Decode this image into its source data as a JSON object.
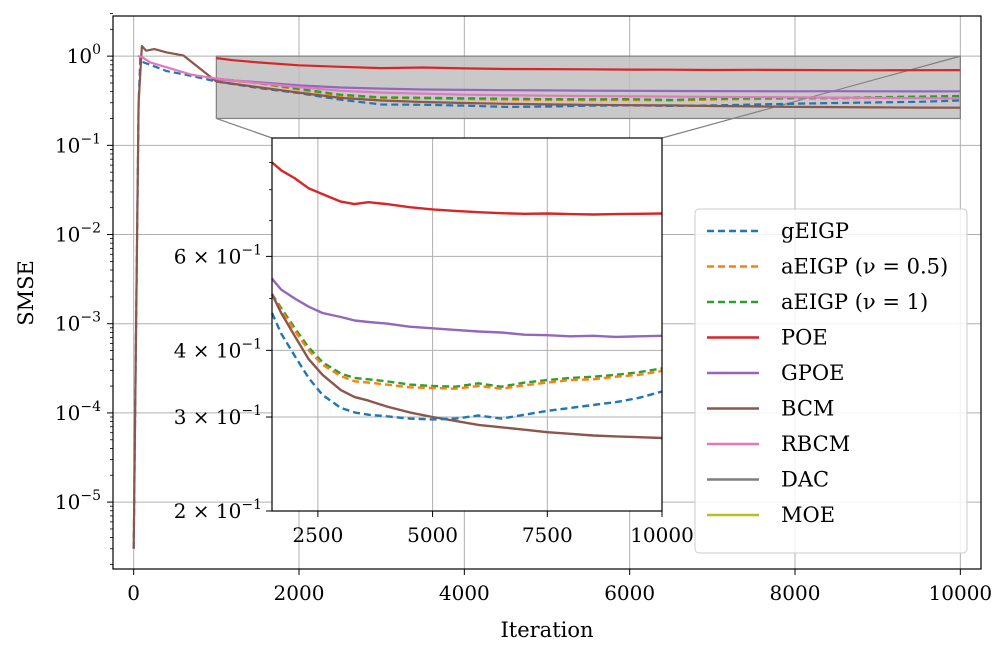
{
  "chart_data": {
    "type": "line",
    "xlabel": "Iteration",
    "ylabel": "SMSE",
    "xlim": [
      -250,
      10250
    ],
    "ylim_log10": [
      -5.75,
      0.45
    ],
    "grid": true,
    "xticks": [
      {
        "value": 0,
        "label": "0"
      },
      {
        "value": 2000,
        "label": "2000"
      },
      {
        "value": 4000,
        "label": "4000"
      },
      {
        "value": 6000,
        "label": "6000"
      },
      {
        "value": 8000,
        "label": "8000"
      },
      {
        "value": 10000,
        "label": "10000"
      }
    ],
    "yticks": [
      {
        "exp": 0,
        "base": "10",
        "sup": "0"
      },
      {
        "exp": -1,
        "base": "10",
        "sup": "−1"
      },
      {
        "exp": -2,
        "base": "10",
        "sup": "−2"
      },
      {
        "exp": -3,
        "base": "10",
        "sup": "−3"
      },
      {
        "exp": -4,
        "base": "10",
        "sup": "−4"
      },
      {
        "exp": -5,
        "base": "10",
        "sup": "−5"
      }
    ],
    "legend_position": "lower-right",
    "zoom_region": {
      "x": [
        1000,
        10000
      ],
      "y": [
        0.2,
        1.0
      ]
    },
    "series": [
      {
        "name": "gEIGP",
        "color": "#1f77b4",
        "dash": true,
        "x": [
          0,
          30,
          60,
          80,
          120,
          200,
          400,
          700,
          1000,
          1500,
          2000,
          2500,
          3000,
          3500,
          4000,
          4500,
          5000,
          5500,
          6000,
          6500,
          7000,
          7500,
          8000,
          8500,
          9000,
          9500,
          10000
        ],
        "y": [
          3e-06,
          0.001,
          0.3,
          0.95,
          0.85,
          0.8,
          0.68,
          0.6,
          0.52,
          0.44,
          0.385,
          0.325,
          0.287,
          0.285,
          0.279,
          0.27,
          0.272,
          0.278,
          0.28,
          0.277,
          0.28,
          0.287,
          0.293,
          0.298,
          0.303,
          0.308,
          0.318
        ]
      },
      {
        "name": "aEIGP (ν = 0.5)",
        "color": "#ff7f0e",
        "dash": true,
        "x": [
          1000,
          1500,
          2000,
          2500,
          3000,
          3500,
          4000,
          4500,
          5000,
          5500,
          6000,
          6500,
          7000,
          7500,
          8000,
          8500,
          9000,
          9500,
          10000
        ],
        "y": [
          0.55,
          0.5,
          0.42,
          0.36,
          0.34,
          0.335,
          0.33,
          0.325,
          0.323,
          0.32,
          0.322,
          0.318,
          0.326,
          0.33,
          0.333,
          0.335,
          0.34,
          0.345,
          0.352
        ]
      },
      {
        "name": "aEIGP (ν = 1)",
        "color": "#2ca02c",
        "dash": true,
        "x": [
          1000,
          1500,
          2000,
          2500,
          3000,
          3500,
          4000,
          4500,
          5000,
          5500,
          6000,
          6500,
          7000,
          7500,
          8000,
          8500,
          9000,
          9500,
          10000
        ],
        "y": [
          0.56,
          0.5,
          0.43,
          0.37,
          0.345,
          0.342,
          0.337,
          0.333,
          0.33,
          0.328,
          0.33,
          0.322,
          0.333,
          0.337,
          0.34,
          0.342,
          0.347,
          0.352,
          0.358
        ]
      },
      {
        "name": "POE",
        "color": "#d62728",
        "dash": false,
        "x": [
          1000,
          1200,
          1500,
          2000,
          2500,
          3000,
          3500,
          4000,
          4500,
          5000,
          5500,
          6000,
          6500,
          7000,
          7500,
          8000,
          8500,
          9000,
          9500,
          10000
        ],
        "y": [
          0.95,
          0.9,
          0.85,
          0.79,
          0.76,
          0.735,
          0.745,
          0.728,
          0.718,
          0.715,
          0.712,
          0.707,
          0.705,
          0.7,
          0.702,
          0.7,
          0.695,
          0.693,
          0.696,
          0.697
        ]
      },
      {
        "name": "GPOE",
        "color": "#9467bd",
        "dash": false,
        "x": [
          1000,
          1500,
          2000,
          2500,
          3000,
          3500,
          4000,
          4500,
          5000,
          5500,
          6000,
          6500,
          7000,
          7500,
          8000,
          8500,
          9000,
          9500,
          10000
        ],
        "y": [
          0.55,
          0.51,
          0.47,
          0.445,
          0.432,
          0.423,
          0.418,
          0.415,
          0.413,
          0.41,
          0.409,
          0.407,
          0.405,
          0.404,
          0.403,
          0.404,
          0.403,
          0.402,
          0.403
        ]
      },
      {
        "name": "BCM",
        "color": "#8c564b",
        "dash": false,
        "x": [
          0,
          30,
          60,
          100,
          150,
          250,
          400,
          600,
          1000,
          1500,
          2000,
          2500,
          3000,
          3500,
          4000,
          4500,
          5000,
          5500,
          6000,
          6500,
          7000,
          7500,
          8000,
          8500,
          9000,
          9500,
          10000
        ],
        "y": [
          3e-06,
          0.001,
          0.3,
          1.3,
          1.15,
          1.2,
          1.1,
          1.02,
          0.52,
          0.45,
          0.39,
          0.34,
          0.318,
          0.306,
          0.298,
          0.292,
          0.288,
          0.285,
          0.282,
          0.28,
          0.276,
          0.273,
          0.27,
          0.268,
          0.266,
          0.265,
          0.264
        ]
      },
      {
        "name": "RBCM",
        "color": "#e377c2",
        "dash": false,
        "x": [
          50,
          100,
          200,
          400,
          700,
          1000,
          1500,
          2000,
          2500,
          3000,
          4000,
          5000,
          6000,
          7000,
          8000,
          9000,
          10000
        ],
        "y": [
          1.0,
          0.98,
          0.85,
          0.75,
          0.62,
          0.56,
          0.5,
          0.45,
          0.41,
          0.39,
          0.37,
          0.36,
          0.355,
          0.35,
          0.345,
          0.34,
          0.335
        ]
      },
      {
        "name": "DAC",
        "color": "#7f7f7f",
        "dash": false,
        "x": [],
        "y": []
      },
      {
        "name": "MOE",
        "color": "#bcbd22",
        "dash": false,
        "x": [],
        "y": []
      }
    ],
    "inset": {
      "xlim": [
        1500,
        10000
      ],
      "ylim": [
        0.2,
        1.0
      ],
      "xticks": [
        {
          "value": 2500,
          "label": "2500"
        },
        {
          "value": 5000,
          "label": "5000"
        },
        {
          "value": 7500,
          "label": "7500"
        },
        {
          "value": 10000,
          "label": "10000"
        }
      ],
      "yticks": [
        {
          "value": 0.6,
          "mant": "6 × 10",
          "sup": "−1"
        },
        {
          "value": 0.4,
          "mant": "4 × 10",
          "sup": "−1"
        },
        {
          "value": 0.3,
          "mant": "3 × 10",
          "sup": "−1"
        },
        {
          "value": 0.2,
          "mant": "2 × 10",
          "sup": "−1"
        }
      ],
      "series": [
        {
          "name": "POE",
          "color": "#d62728",
          "dash": false,
          "x": [
            1500,
            1700,
            2000,
            2300,
            2600,
            3000,
            3300,
            3600,
            4000,
            4500,
            5000,
            5500,
            6000,
            6500,
            7000,
            7500,
            8000,
            8500,
            9000,
            9500,
            10000
          ],
          "y": [
            0.9,
            0.87,
            0.84,
            0.805,
            0.785,
            0.76,
            0.752,
            0.758,
            0.752,
            0.742,
            0.735,
            0.73,
            0.726,
            0.723,
            0.721,
            0.722,
            0.72,
            0.719,
            0.72,
            0.721,
            0.722
          ]
        },
        {
          "name": "GPOE",
          "color": "#9467bd",
          "dash": false,
          "x": [
            1500,
            1700,
            2000,
            2300,
            2600,
            3000,
            3300,
            3600,
            4000,
            4500,
            5000,
            5500,
            6000,
            6500,
            7000,
            7500,
            8000,
            8500,
            9000,
            9500,
            10000
          ],
          "y": [
            0.545,
            0.52,
            0.5,
            0.483,
            0.47,
            0.462,
            0.455,
            0.452,
            0.449,
            0.443,
            0.44,
            0.437,
            0.434,
            0.432,
            0.428,
            0.427,
            0.425,
            0.426,
            0.424,
            0.425,
            0.426
          ]
        },
        {
          "name": "aEIGP (ν = 1)",
          "color": "#2ca02c",
          "dash": true,
          "x": [
            1500,
            1700,
            2000,
            2300,
            2600,
            3000,
            3300,
            3600,
            4000,
            4500,
            5000,
            5500,
            6000,
            6500,
            7000,
            7500,
            8000,
            8500,
            9000,
            9500,
            10000
          ],
          "y": [
            0.51,
            0.48,
            0.44,
            0.405,
            0.38,
            0.362,
            0.355,
            0.353,
            0.35,
            0.345,
            0.343,
            0.342,
            0.347,
            0.342,
            0.348,
            0.352,
            0.355,
            0.357,
            0.36,
            0.364,
            0.37
          ]
        },
        {
          "name": "aEIGP (ν = 0.5)",
          "color": "#ff7f0e",
          "dash": true,
          "x": [
            1500,
            1700,
            2000,
            2300,
            2600,
            3000,
            3300,
            3600,
            4000,
            4500,
            5000,
            5500,
            6000,
            6500,
            7000,
            7500,
            8000,
            8500,
            9000,
            9500,
            10000
          ],
          "y": [
            0.51,
            0.475,
            0.435,
            0.4,
            0.376,
            0.358,
            0.35,
            0.348,
            0.345,
            0.341,
            0.34,
            0.339,
            0.343,
            0.339,
            0.344,
            0.348,
            0.352,
            0.353,
            0.357,
            0.36,
            0.366
          ]
        },
        {
          "name": "BCM",
          "color": "#8c564b",
          "dash": false,
          "x": [
            1500,
            1700,
            2000,
            2300,
            2600,
            3000,
            3300,
            3600,
            4000,
            4500,
            5000,
            5500,
            6000,
            6500,
            7000,
            7500,
            8000,
            8500,
            9000,
            9500,
            10000
          ],
          "y": [
            0.51,
            0.47,
            0.425,
            0.385,
            0.36,
            0.337,
            0.327,
            0.322,
            0.314,
            0.306,
            0.3,
            0.295,
            0.29,
            0.287,
            0.284,
            0.281,
            0.279,
            0.277,
            0.276,
            0.275,
            0.274
          ]
        },
        {
          "name": "gEIGP",
          "color": "#1f77b4",
          "dash": true,
          "x": [
            1500,
            1700,
            2000,
            2300,
            2600,
            3000,
            3300,
            3600,
            4000,
            4500,
            5000,
            5500,
            6000,
            6500,
            7000,
            7500,
            8000,
            8500,
            9000,
            9500,
            10000
          ],
          "y": [
            0.47,
            0.43,
            0.39,
            0.355,
            0.33,
            0.312,
            0.306,
            0.303,
            0.301,
            0.298,
            0.297,
            0.298,
            0.302,
            0.298,
            0.303,
            0.308,
            0.312,
            0.316,
            0.32,
            0.326,
            0.335
          ]
        }
      ]
    }
  }
}
